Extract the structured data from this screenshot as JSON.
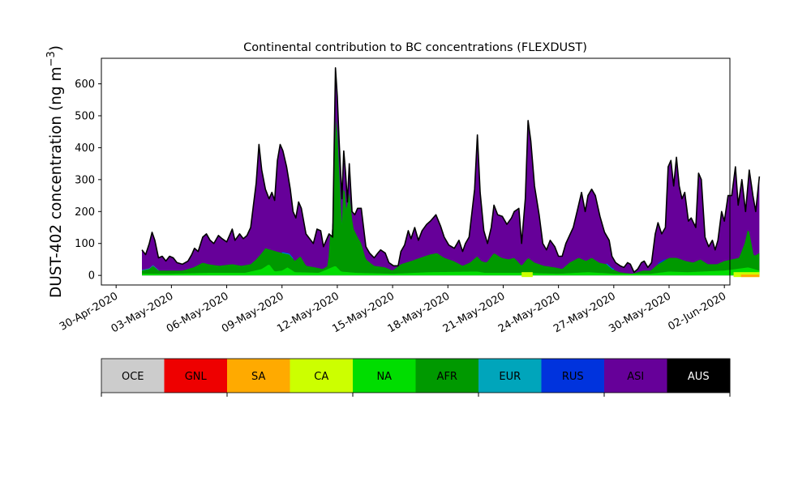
{
  "chart_data": {
    "type": "area",
    "title": "Continental contribution to BC concentrations (FLEXDUST)",
    "ylabel_main": "DUST-402 concentration (ng m",
    "ylabel_sup": "−3",
    "ylabel_close": ")",
    "xlabel": "",
    "ylim": [
      -30,
      680
    ],
    "xlim_days": [
      -0.8,
      33.3
    ],
    "y_ticks": [
      0,
      100,
      200,
      300,
      400,
      500,
      600
    ],
    "y_tick_labels": [
      "0",
      "100",
      "200",
      "300",
      "400",
      "500",
      "600"
    ],
    "x_ticks": [
      "30-Apr-2020",
      "03-May-2020",
      "06-May-2020",
      "09-May-2020",
      "12-May-2020",
      "15-May-2020",
      "18-May-2020",
      "21-May-2020",
      "24-May-2020",
      "27-May-2020",
      "30-May-2020",
      "02-Jun-2020"
    ],
    "x_tick_days": [
      0,
      3,
      6,
      9,
      12,
      15,
      18,
      21,
      24,
      27,
      30,
      33
    ],
    "total_series": {
      "name": "total",
      "color": "#000000",
      "points": [
        [
          1.4,
          80
        ],
        [
          1.6,
          65
        ],
        [
          1.8,
          100
        ],
        [
          1.95,
          135
        ],
        [
          2.1,
          110
        ],
        [
          2.3,
          55
        ],
        [
          2.5,
          60
        ],
        [
          2.7,
          45
        ],
        [
          2.9,
          60
        ],
        [
          3.1,
          55
        ],
        [
          3.3,
          40
        ],
        [
          3.6,
          35
        ],
        [
          3.9,
          45
        ],
        [
          4.1,
          65
        ],
        [
          4.25,
          85
        ],
        [
          4.45,
          75
        ],
        [
          4.7,
          120
        ],
        [
          4.9,
          130
        ],
        [
          5.1,
          110
        ],
        [
          5.3,
          100
        ],
        [
          5.55,
          125
        ],
        [
          5.75,
          115
        ],
        [
          6.0,
          105
        ],
        [
          6.3,
          145
        ],
        [
          6.45,
          110
        ],
        [
          6.7,
          130
        ],
        [
          6.9,
          115
        ],
        [
          7.1,
          125
        ],
        [
          7.3,
          150
        ],
        [
          7.6,
          290
        ],
        [
          7.75,
          410
        ],
        [
          7.9,
          330
        ],
        [
          8.1,
          270
        ],
        [
          8.3,
          240
        ],
        [
          8.45,
          260
        ],
        [
          8.6,
          235
        ],
        [
          8.75,
          360
        ],
        [
          8.9,
          410
        ],
        [
          9.05,
          390
        ],
        [
          9.25,
          340
        ],
        [
          9.45,
          270
        ],
        [
          9.6,
          200
        ],
        [
          9.75,
          180
        ],
        [
          9.9,
          230
        ],
        [
          10.05,
          210
        ],
        [
          10.3,
          130
        ],
        [
          10.5,
          115
        ],
        [
          10.7,
          100
        ],
        [
          10.9,
          145
        ],
        [
          11.1,
          140
        ],
        [
          11.25,
          90
        ],
        [
          11.55,
          130
        ],
        [
          11.75,
          120
        ],
        [
          11.9,
          650
        ],
        [
          12.0,
          560
        ],
        [
          12.1,
          420
        ],
        [
          12.2,
          300
        ],
        [
          12.25,
          240
        ],
        [
          12.35,
          390
        ],
        [
          12.45,
          320
        ],
        [
          12.55,
          230
        ],
        [
          12.65,
          350
        ],
        [
          12.8,
          200
        ],
        [
          12.95,
          190
        ],
        [
          13.1,
          210
        ],
        [
          13.3,
          210
        ],
        [
          13.55,
          90
        ],
        [
          13.75,
          70
        ],
        [
          14.0,
          55
        ],
        [
          14.2,
          70
        ],
        [
          14.35,
          80
        ],
        [
          14.6,
          70
        ],
        [
          14.8,
          40
        ],
        [
          15.05,
          30
        ],
        [
          15.3,
          30
        ],
        [
          15.45,
          75
        ],
        [
          15.65,
          95
        ],
        [
          15.85,
          140
        ],
        [
          16.0,
          115
        ],
        [
          16.2,
          150
        ],
        [
          16.4,
          110
        ],
        [
          16.6,
          140
        ],
        [
          16.85,
          160
        ],
        [
          17.05,
          170
        ],
        [
          17.35,
          190
        ],
        [
          17.6,
          155
        ],
        [
          17.8,
          120
        ],
        [
          18.05,
          95
        ],
        [
          18.35,
          85
        ],
        [
          18.6,
          110
        ],
        [
          18.8,
          75
        ],
        [
          18.95,
          100
        ],
        [
          19.15,
          120
        ],
        [
          19.45,
          270
        ],
        [
          19.6,
          440
        ],
        [
          19.75,
          260
        ],
        [
          19.95,
          140
        ],
        [
          20.15,
          100
        ],
        [
          20.35,
          150
        ],
        [
          20.5,
          220
        ],
        [
          20.7,
          190
        ],
        [
          20.95,
          185
        ],
        [
          21.2,
          160
        ],
        [
          21.45,
          180
        ],
        [
          21.6,
          200
        ],
        [
          21.85,
          210
        ],
        [
          22.0,
          100
        ],
        [
          22.2,
          240
        ],
        [
          22.35,
          485
        ],
        [
          22.5,
          420
        ],
        [
          22.7,
          280
        ],
        [
          22.95,
          190
        ],
        [
          23.15,
          100
        ],
        [
          23.35,
          80
        ],
        [
          23.55,
          110
        ],
        [
          23.8,
          90
        ],
        [
          24.0,
          60
        ],
        [
          24.2,
          60
        ],
        [
          24.4,
          100
        ],
        [
          24.6,
          125
        ],
        [
          24.8,
          150
        ],
        [
          25.05,
          210
        ],
        [
          25.25,
          260
        ],
        [
          25.45,
          200
        ],
        [
          25.6,
          250
        ],
        [
          25.8,
          270
        ],
        [
          26.0,
          250
        ],
        [
          26.25,
          185
        ],
        [
          26.5,
          135
        ],
        [
          26.75,
          110
        ],
        [
          26.9,
          60
        ],
        [
          27.1,
          40
        ],
        [
          27.35,
          30
        ],
        [
          27.55,
          25
        ],
        [
          27.75,
          40
        ],
        [
          27.9,
          35
        ],
        [
          28.1,
          10
        ],
        [
          28.3,
          20
        ],
        [
          28.5,
          40
        ],
        [
          28.65,
          45
        ],
        [
          28.85,
          25
        ],
        [
          29.05,
          40
        ],
        [
          29.25,
          130
        ],
        [
          29.4,
          165
        ],
        [
          29.6,
          130
        ],
        [
          29.8,
          150
        ],
        [
          29.95,
          340
        ],
        [
          30.1,
          360
        ],
        [
          30.25,
          280
        ],
        [
          30.4,
          370
        ],
        [
          30.55,
          280
        ],
        [
          30.7,
          240
        ],
        [
          30.85,
          260
        ],
        [
          31.05,
          170
        ],
        [
          31.2,
          180
        ],
        [
          31.45,
          150
        ],
        [
          31.6,
          320
        ],
        [
          31.75,
          300
        ],
        [
          31.95,
          120
        ],
        [
          32.15,
          90
        ],
        [
          32.35,
          110
        ],
        [
          32.5,
          80
        ],
        [
          32.65,
          110
        ],
        [
          32.85,
          200
        ],
        [
          33.0,
          170
        ],
        [
          33.2,
          250
        ],
        [
          33.4,
          250
        ],
        [
          33.6,
          340
        ],
        [
          33.75,
          220
        ],
        [
          33.95,
          300
        ],
        [
          34.15,
          200
        ],
        [
          34.35,
          330
        ],
        [
          34.55,
          250
        ],
        [
          34.7,
          200
        ],
        [
          34.9,
          310
        ]
      ]
    },
    "afr_series": {
      "name": "AFR",
      "color": "#009900",
      "points": [
        [
          1.4,
          15
        ],
        [
          1.8,
          20
        ],
        [
          2.0,
          30
        ],
        [
          2.3,
          15
        ],
        [
          3.0,
          15
        ],
        [
          3.6,
          15
        ],
        [
          4.2,
          25
        ],
        [
          4.7,
          40
        ],
        [
          5.0,
          35
        ],
        [
          5.6,
          30
        ],
        [
          6.3,
          35
        ],
        [
          6.8,
          30
        ],
        [
          7.3,
          35
        ],
        [
          7.6,
          50
        ],
        [
          7.9,
          70
        ],
        [
          8.1,
          85
        ],
        [
          8.4,
          80
        ],
        [
          8.7,
          75
        ],
        [
          9.0,
          70
        ],
        [
          9.4,
          65
        ],
        [
          9.7,
          45
        ],
        [
          10.0,
          60
        ],
        [
          10.3,
          30
        ],
        [
          10.8,
          25
        ],
        [
          11.2,
          20
        ],
        [
          11.5,
          30
        ],
        [
          11.8,
          300
        ],
        [
          11.95,
          520
        ],
        [
          12.1,
          330
        ],
        [
          12.25,
          160
        ],
        [
          12.35,
          300
        ],
        [
          12.5,
          200
        ],
        [
          12.65,
          260
        ],
        [
          12.85,
          150
        ],
        [
          13.1,
          120
        ],
        [
          13.3,
          100
        ],
        [
          13.55,
          50
        ],
        [
          14.0,
          30
        ],
        [
          14.6,
          25
        ],
        [
          15.0,
          15
        ],
        [
          15.45,
          35
        ],
        [
          16.0,
          45
        ],
        [
          16.5,
          55
        ],
        [
          17.0,
          65
        ],
        [
          17.4,
          70
        ],
        [
          17.8,
          55
        ],
        [
          18.3,
          45
        ],
        [
          18.8,
          30
        ],
        [
          19.2,
          40
        ],
        [
          19.6,
          60
        ],
        [
          19.8,
          45
        ],
        [
          20.1,
          40
        ],
        [
          20.5,
          70
        ],
        [
          20.9,
          55
        ],
        [
          21.3,
          50
        ],
        [
          21.6,
          55
        ],
        [
          22.0,
          30
        ],
        [
          22.35,
          55
        ],
        [
          22.7,
          40
        ],
        [
          23.2,
          30
        ],
        [
          23.8,
          25
        ],
        [
          24.2,
          20
        ],
        [
          24.6,
          40
        ],
        [
          25.1,
          55
        ],
        [
          25.5,
          45
        ],
        [
          25.8,
          55
        ],
        [
          26.2,
          40
        ],
        [
          26.6,
          35
        ],
        [
          26.9,
          20
        ],
        [
          27.3,
          10
        ],
        [
          28.0,
          5
        ],
        [
          28.6,
          15
        ],
        [
          29.0,
          15
        ],
        [
          29.4,
          35
        ],
        [
          29.7,
          45
        ],
        [
          30.0,
          55
        ],
        [
          30.4,
          55
        ],
        [
          30.9,
          45
        ],
        [
          31.3,
          40
        ],
        [
          31.7,
          50
        ],
        [
          32.1,
          35
        ],
        [
          32.6,
          35
        ],
        [
          33.0,
          45
        ],
        [
          33.4,
          50
        ],
        [
          33.8,
          55
        ],
        [
          34.1,
          100
        ],
        [
          34.3,
          150
        ],
        [
          34.6,
          60
        ],
        [
          34.9,
          70
        ]
      ]
    },
    "bottom_series": {
      "name": "NA",
      "color": "#00dd00",
      "points": [
        [
          1.4,
          5
        ],
        [
          3.0,
          5
        ],
        [
          5.0,
          8
        ],
        [
          7.0,
          8
        ],
        [
          7.9,
          20
        ],
        [
          8.3,
          35
        ],
        [
          8.6,
          12
        ],
        [
          9.0,
          15
        ],
        [
          9.3,
          25
        ],
        [
          9.7,
          10
        ],
        [
          11.0,
          8
        ],
        [
          11.9,
          30
        ],
        [
          12.2,
          12
        ],
        [
          13.0,
          8
        ],
        [
          15.0,
          5
        ],
        [
          17.0,
          10
        ],
        [
          19.6,
          12
        ],
        [
          20.0,
          8
        ],
        [
          22.0,
          8
        ],
        [
          24.0,
          5
        ],
        [
          25.6,
          10
        ],
        [
          27.0,
          5
        ],
        [
          29.0,
          5
        ],
        [
          30.0,
          12
        ],
        [
          31.0,
          10
        ],
        [
          33.0,
          15
        ],
        [
          34.3,
          25
        ],
        [
          34.9,
          15
        ]
      ]
    },
    "strip_series": [
      {
        "name": "RUS",
        "color": "#0033dd",
        "offset": 4,
        "days": [
          [
            9.0,
            9.6
          ],
          [
            12.0,
            12.2
          ],
          [
            26.6,
            27.0
          ],
          [
            29.4,
            29.8
          ]
        ]
      },
      {
        "name": "EUR",
        "color": "#00a5bb",
        "offset": 2,
        "days": [
          [
            1.4,
            2.3
          ],
          [
            9.0,
            9.6
          ],
          [
            12.0,
            12.3
          ],
          [
            26.6,
            27.0
          ]
        ]
      }
    ],
    "floor_series": [
      {
        "name": "CA",
        "color": "#ccff00",
        "days": [
          [
            22.0,
            22.6
          ],
          [
            33.5,
            34.9
          ]
        ]
      },
      {
        "name": "SA",
        "color": "#ffaa00",
        "days": [
          [
            33.9,
            34.9
          ]
        ]
      }
    ],
    "colorbar": {
      "ticks_at_index": [
        0,
        2,
        4,
        6,
        8,
        10
      ],
      "categories": [
        {
          "label": "OCE",
          "color": "#cccccc",
          "text_color": "#000000"
        },
        {
          "label": "GNL",
          "color": "#ee0000",
          "text_color": "#000000"
        },
        {
          "label": "SA",
          "color": "#ffaa00",
          "text_color": "#000000"
        },
        {
          "label": "CA",
          "color": "#ccff00",
          "text_color": "#000000"
        },
        {
          "label": "NA",
          "color": "#00dd00",
          "text_color": "#000000"
        },
        {
          "label": "AFR",
          "color": "#009900",
          "text_color": "#000000"
        },
        {
          "label": "EUR",
          "color": "#00a5bb",
          "text_color": "#000000"
        },
        {
          "label": "RUS",
          "color": "#0033dd",
          "text_color": "#000000"
        },
        {
          "label": "ASI",
          "color": "#660099",
          "text_color": "#000000"
        },
        {
          "label": "AUS",
          "color": "#000000",
          "text_color": "#ffffff"
        }
      ]
    }
  }
}
